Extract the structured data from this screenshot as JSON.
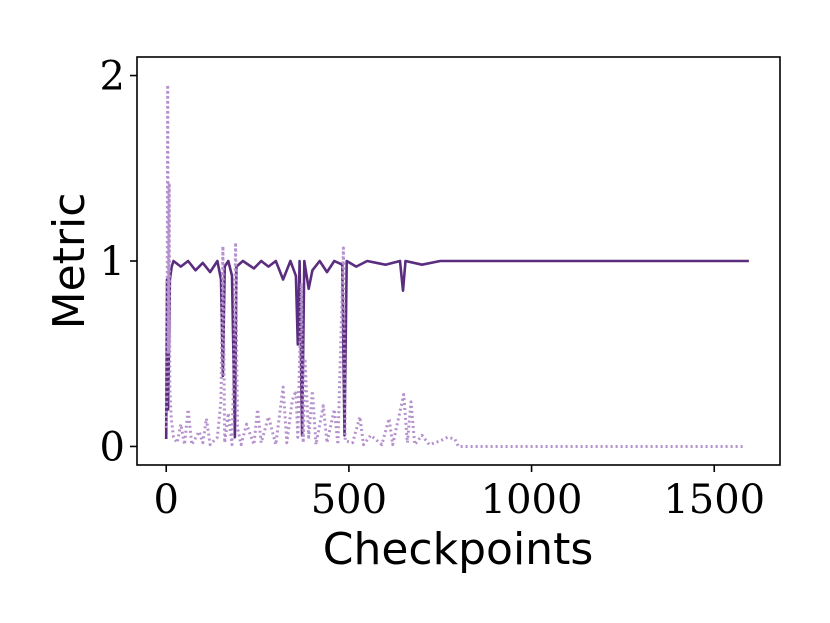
{
  "chart_data": {
    "type": "line",
    "title": "",
    "xlabel": "Checkpoints",
    "ylabel": "Metric",
    "xlim": [
      -80,
      1680
    ],
    "ylim": [
      -0.1,
      2.1
    ],
    "xticks": [
      0,
      500,
      1000,
      1500
    ],
    "xtick_labels": [
      "0",
      "500",
      "1000",
      "1500"
    ],
    "yticks": [
      0,
      1,
      2
    ],
    "ytick_labels": [
      "0",
      "1",
      "2"
    ],
    "grid": false,
    "legend": "none",
    "series": [
      {
        "style": "solid",
        "color": "#5b2d7f",
        "points": [
          [
            0,
            0.04
          ],
          [
            2,
            0.9
          ],
          [
            5,
            0.2
          ],
          [
            10,
            0.9
          ],
          [
            15,
            0.97
          ],
          [
            20,
            1.0
          ],
          [
            40,
            0.97
          ],
          [
            60,
            1.0
          ],
          [
            80,
            0.95
          ],
          [
            100,
            0.99
          ],
          [
            120,
            0.94
          ],
          [
            140,
            1.0
          ],
          [
            150,
            0.9
          ],
          [
            155,
            0.38
          ],
          [
            160,
            0.97
          ],
          [
            170,
            1.0
          ],
          [
            180,
            0.92
          ],
          [
            188,
            0.05
          ],
          [
            192,
            0.97
          ],
          [
            210,
            1.0
          ],
          [
            240,
            0.96
          ],
          [
            260,
            1.0
          ],
          [
            280,
            0.97
          ],
          [
            300,
            1.0
          ],
          [
            320,
            0.9
          ],
          [
            340,
            1.0
          ],
          [
            355,
            0.92
          ],
          [
            360,
            0.55
          ],
          [
            365,
            1.0
          ],
          [
            372,
            0.06
          ],
          [
            378,
            1.0
          ],
          [
            390,
            0.85
          ],
          [
            400,
            0.95
          ],
          [
            420,
            1.0
          ],
          [
            440,
            0.94
          ],
          [
            460,
            1.0
          ],
          [
            482,
            0.98
          ],
          [
            488,
            0.06
          ],
          [
            494,
            1.0
          ],
          [
            520,
            0.97
          ],
          [
            550,
            1.0
          ],
          [
            600,
            0.98
          ],
          [
            640,
            1.0
          ],
          [
            648,
            0.84
          ],
          [
            655,
            1.0
          ],
          [
            700,
            0.98
          ],
          [
            750,
            1.0
          ],
          [
            800,
            1.0
          ],
          [
            1000,
            1.0
          ],
          [
            1200,
            1.0
          ],
          [
            1400,
            1.0
          ],
          [
            1595,
            1.0
          ]
        ]
      },
      {
        "style": "dotted",
        "color": "#b592cd",
        "points": [
          [
            0,
            0.1
          ],
          [
            2,
            0.4
          ],
          [
            4,
            1.95
          ],
          [
            6,
            0.5
          ],
          [
            8,
            1.42
          ],
          [
            10,
            0.3
          ],
          [
            14,
            0.15
          ],
          [
            20,
            0.05
          ],
          [
            30,
            0.02
          ],
          [
            40,
            0.12
          ],
          [
            50,
            0.01
          ],
          [
            60,
            0.2
          ],
          [
            70,
            0.01
          ],
          [
            90,
            0.08
          ],
          [
            100,
            0.02
          ],
          [
            110,
            0.15
          ],
          [
            120,
            0.01
          ],
          [
            140,
            0.05
          ],
          [
            150,
            0.25
          ],
          [
            155,
            1.08
          ],
          [
            160,
            0.02
          ],
          [
            170,
            0.18
          ],
          [
            180,
            0.01
          ],
          [
            185,
            0.42
          ],
          [
            190,
            1.1
          ],
          [
            195,
            0.1
          ],
          [
            205,
            0.01
          ],
          [
            220,
            0.12
          ],
          [
            240,
            0.01
          ],
          [
            250,
            0.2
          ],
          [
            260,
            0.02
          ],
          [
            280,
            0.16
          ],
          [
            300,
            0.01
          ],
          [
            320,
            0.32
          ],
          [
            330,
            0.02
          ],
          [
            345,
            0.25
          ],
          [
            355,
            0.3
          ],
          [
            360,
            0.05
          ],
          [
            370,
            0.88
          ],
          [
            375,
            0.02
          ],
          [
            380,
            0.46
          ],
          [
            390,
            0.05
          ],
          [
            400,
            0.3
          ],
          [
            410,
            0.01
          ],
          [
            430,
            0.22
          ],
          [
            440,
            0.02
          ],
          [
            460,
            0.2
          ],
          [
            470,
            0.01
          ],
          [
            485,
            1.07
          ],
          [
            490,
            0.03
          ],
          [
            510,
            0.02
          ],
          [
            530,
            0.16
          ],
          [
            540,
            0.01
          ],
          [
            560,
            0.06
          ],
          [
            590,
            0.01
          ],
          [
            610,
            0.15
          ],
          [
            620,
            0.01
          ],
          [
            650,
            0.28
          ],
          [
            660,
            0.02
          ],
          [
            670,
            0.24
          ],
          [
            680,
            0.01
          ],
          [
            700,
            0.06
          ],
          [
            720,
            0.01
          ],
          [
            750,
            0.03
          ],
          [
            770,
            0.05
          ],
          [
            790,
            0.04
          ],
          [
            800,
            0.0
          ],
          [
            1000,
            0.0
          ],
          [
            1200,
            0.0
          ],
          [
            1400,
            0.0
          ],
          [
            1580,
            0.0
          ]
        ]
      }
    ]
  }
}
